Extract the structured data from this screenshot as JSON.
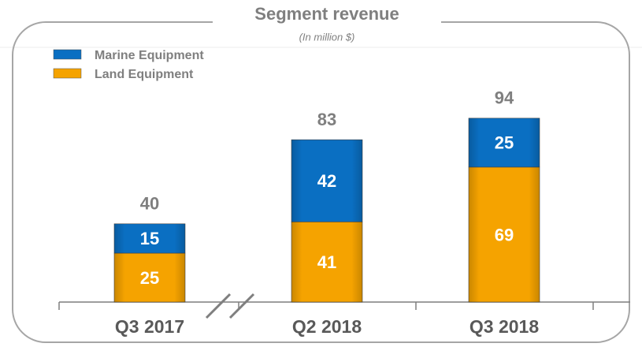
{
  "chart_data": {
    "type": "stacked_bar",
    "title": "Segment revenue",
    "subtitle": "(In million $)",
    "categories": [
      "Q3 2017",
      "Q2 2018",
      "Q3 2018"
    ],
    "series": [
      {
        "name": "Land Equipment",
        "color": "#f5a300",
        "values": [
          25,
          41,
          69
        ]
      },
      {
        "name": "Marine Equipment",
        "color": "#0a6fc2",
        "values": [
          15,
          42,
          25
        ]
      }
    ],
    "totals": [
      40,
      83,
      94
    ]
  }
}
